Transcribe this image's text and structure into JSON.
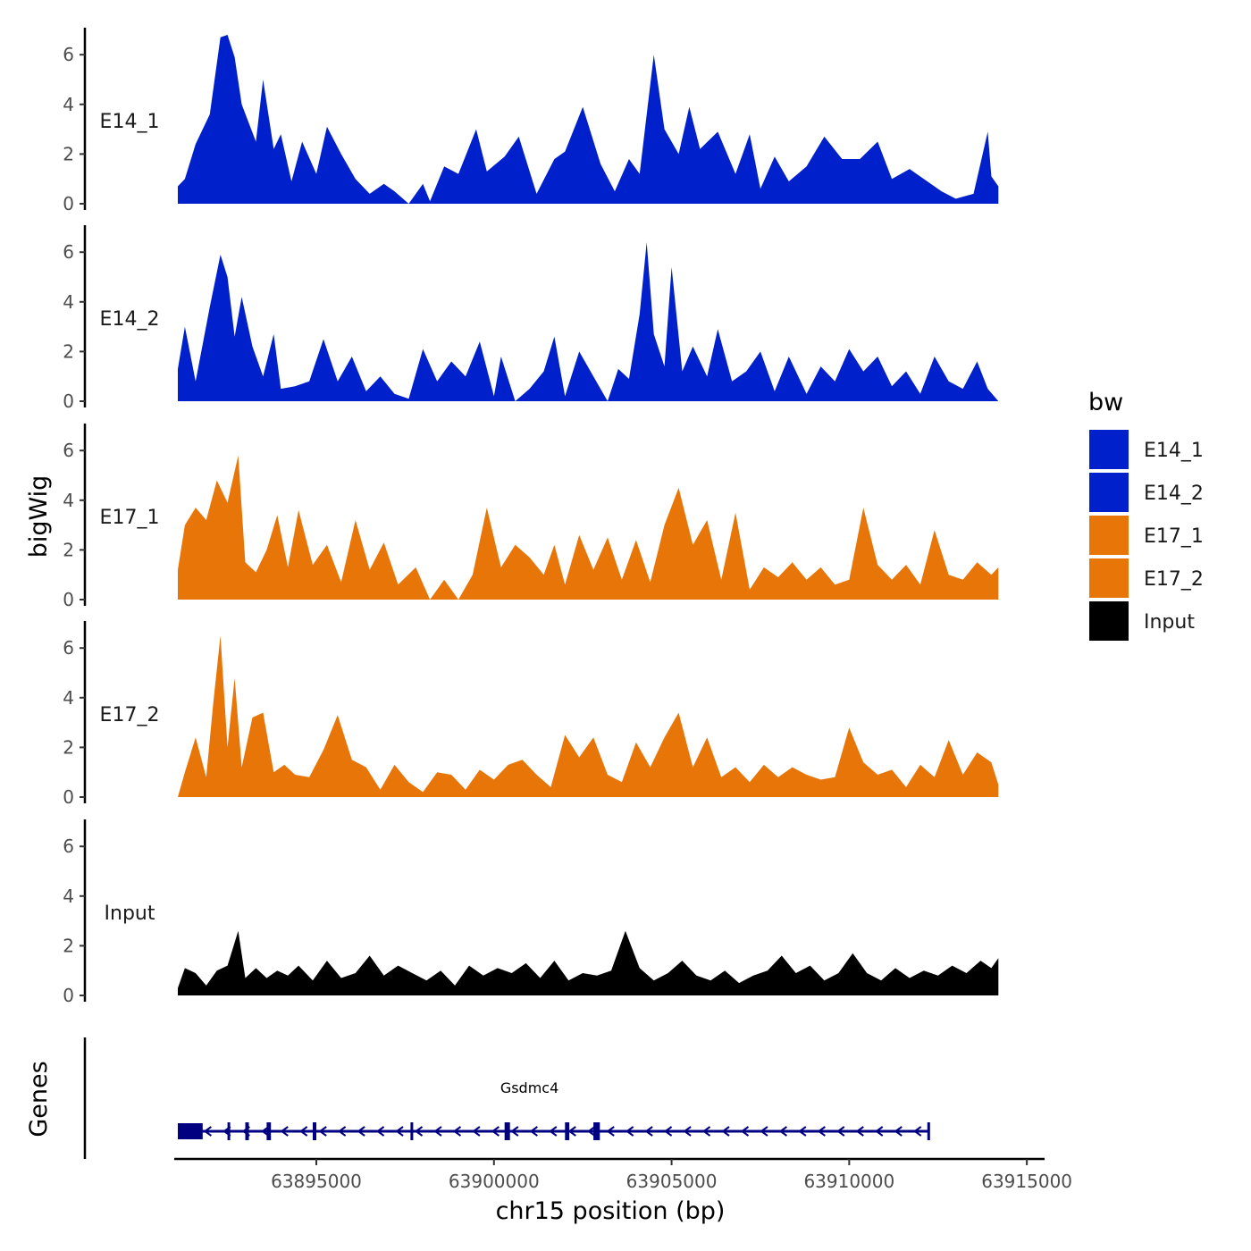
{
  "chart_data": {
    "type": "area",
    "ylabel": "bigWig",
    "xlabel": "chr15 position (bp)",
    "xlim": [
      63891000,
      63915500
    ],
    "ylim": [
      0,
      7
    ],
    "y_ticks": [
      0,
      2,
      4,
      6
    ],
    "x_ticks": [
      63895000,
      63900000,
      63905000,
      63910000,
      63915000
    ],
    "x_tick_labels": [
      "63895000",
      "63900000",
      "63905000",
      "63910000",
      "63915000"
    ],
    "legend": {
      "title": "bw",
      "position": "right",
      "entries": [
        {
          "label": "E14_1",
          "color": "#0020CC"
        },
        {
          "label": "E14_2",
          "color": "#0020CC"
        },
        {
          "label": "E17_1",
          "color": "#E87508"
        },
        {
          "label": "E17_2",
          "color": "#E87508"
        },
        {
          "label": "Input",
          "color": "#000000"
        }
      ]
    },
    "series": [
      {
        "name": "E14_1",
        "color": "#0020CC",
        "x": [
          63891100,
          63891300,
          63891600,
          63892000,
          63892300,
          63892500,
          63892700,
          63892900,
          63893300,
          63893500,
          63893800,
          63894000,
          63894300,
          63894600,
          63895000,
          63895300,
          63895700,
          63896100,
          63896500,
          63896900,
          63897200,
          63897600,
          63898000,
          63898200,
          63898600,
          63899000,
          63899500,
          63899800,
          63900300,
          63900700,
          63901200,
          63901700,
          63902000,
          63902500,
          63903000,
          63903400,
          63903800,
          63904100,
          63904500,
          63904800,
          63905200,
          63905500,
          63905800,
          63906300,
          63906800,
          63907200,
          63907500,
          63907900,
          63908300,
          63908800,
          63909300,
          63909800,
          63910300,
          63910800,
          63911200,
          63911700,
          63912100,
          63912600,
          63913000,
          63913500,
          63913900,
          63914000,
          63914200
        ],
        "y": [
          0.7,
          1.0,
          2.4,
          3.6,
          6.7,
          6.8,
          5.9,
          4.0,
          2.5,
          5.0,
          2.2,
          2.8,
          0.9,
          2.5,
          1.2,
          3.1,
          2.0,
          1.0,
          0.4,
          0.8,
          0.5,
          0,
          0.8,
          0.1,
          1.5,
          1.2,
          3.0,
          1.3,
          1.9,
          2.7,
          0.4,
          1.8,
          2.1,
          3.9,
          1.6,
          0.5,
          1.8,
          1.2,
          6.0,
          3.0,
          2.0,
          3.9,
          2.2,
          2.9,
          1.2,
          2.8,
          0.6,
          1.9,
          0.9,
          1.5,
          2.7,
          1.8,
          1.8,
          2.5,
          1.0,
          1.4,
          1.0,
          0.5,
          0.2,
          0.4,
          2.9,
          1.1,
          0.7
        ]
      },
      {
        "name": "E14_2",
        "color": "#0020CC",
        "x": [
          63891100,
          63891300,
          63891600,
          63892000,
          63892300,
          63892500,
          63892700,
          63892900,
          63893200,
          63893500,
          63893800,
          63894000,
          63894400,
          63894800,
          63895200,
          63895600,
          63896000,
          63896400,
          63896800,
          63897200,
          63897600,
          63898000,
          63898400,
          63898800,
          63899200,
          63899600,
          63900000,
          63900200,
          63900600,
          63901000,
          63901400,
          63901700,
          63902000,
          63902400,
          63902800,
          63903200,
          63903500,
          63903800,
          63904100,
          63904300,
          63904500,
          63904800,
          63905000,
          63905300,
          63905600,
          63906000,
          63906300,
          63906700,
          63907100,
          63907500,
          63907900,
          63908300,
          63908800,
          63909200,
          63909600,
          63910000,
          63910400,
          63910800,
          63911200,
          63911600,
          63912000,
          63912400,
          63912800,
          63913200,
          63913600,
          63913900,
          63914200
        ],
        "y": [
          1.3,
          3.0,
          0.8,
          3.8,
          5.9,
          5.0,
          2.6,
          4.2,
          2.2,
          1.0,
          2.7,
          0.5,
          0.6,
          0.8,
          2.5,
          0.8,
          1.8,
          0.4,
          1.0,
          0.3,
          0.1,
          2.1,
          0.8,
          1.6,
          1.0,
          2.4,
          0.2,
          1.8,
          0,
          0.5,
          1.2,
          2.6,
          0.2,
          2.0,
          1.0,
          0,
          1.3,
          0.9,
          3.5,
          6.4,
          2.7,
          1.4,
          5.4,
          1.2,
          2.2,
          1.0,
          2.9,
          0.8,
          1.2,
          2.0,
          0.4,
          1.8,
          0.3,
          1.4,
          0.8,
          2.1,
          1.2,
          1.8,
          0.6,
          1.2,
          0.3,
          1.8,
          0.8,
          0.5,
          1.6,
          0.5,
          0
        ]
      },
      {
        "name": "E17_1",
        "color": "#E87508",
        "x": [
          63891100,
          63891300,
          63891600,
          63891900,
          63892200,
          63892500,
          63892800,
          63893000,
          63893300,
          63893600,
          63893900,
          63894200,
          63894500,
          63894900,
          63895300,
          63895700,
          63896100,
          63896500,
          63896900,
          63897300,
          63897800,
          63898200,
          63898600,
          63899000,
          63899400,
          63899800,
          63900200,
          63900600,
          63901000,
          63901400,
          63901700,
          63902000,
          63902400,
          63902800,
          63903200,
          63903600,
          63904000,
          63904400,
          63904800,
          63905200,
          63905600,
          63906000,
          63906400,
          63906800,
          63907200,
          63907600,
          63908000,
          63908400,
          63908800,
          63909200,
          63909600,
          63910000,
          63910400,
          63910800,
          63911200,
          63911600,
          63912000,
          63912400,
          63912800,
          63913200,
          63913600,
          63914000,
          63914200
        ],
        "y": [
          1.2,
          3.0,
          3.7,
          3.2,
          4.8,
          3.9,
          5.8,
          1.5,
          1.1,
          2.0,
          3.4,
          1.3,
          3.6,
          1.4,
          2.2,
          0.7,
          3.2,
          1.2,
          2.3,
          0.6,
          1.3,
          0,
          0.8,
          0,
          1.0,
          3.7,
          1.3,
          2.2,
          1.7,
          1.0,
          2.2,
          0.6,
          2.6,
          1.2,
          2.5,
          0.8,
          2.4,
          0.7,
          3.0,
          4.5,
          2.2,
          3.2,
          0.8,
          3.5,
          0.4,
          1.3,
          0.9,
          1.5,
          0.8,
          1.3,
          0.6,
          0.8,
          3.7,
          1.4,
          0.8,
          1.4,
          0.6,
          2.8,
          1.0,
          0.8,
          1.5,
          1.0,
          1.3
        ]
      },
      {
        "name": "E17_2",
        "color": "#E87508",
        "x": [
          63891100,
          63891300,
          63891600,
          63891900,
          63892100,
          63892300,
          63892500,
          63892700,
          63892900,
          63893200,
          63893500,
          63893800,
          63894100,
          63894400,
          63894800,
          63895200,
          63895600,
          63896000,
          63896400,
          63896800,
          63897200,
          63897600,
          63898000,
          63898400,
          63898800,
          63899200,
          63899600,
          63900000,
          63900400,
          63900800,
          63901200,
          63901600,
          63902000,
          63902400,
          63902800,
          63903200,
          63903600,
          63904000,
          63904400,
          63904800,
          63905200,
          63905600,
          63906000,
          63906400,
          63906800,
          63907200,
          63907600,
          63908000,
          63908400,
          63908800,
          63909200,
          63909600,
          63910000,
          63910400,
          63910800,
          63911200,
          63911600,
          63912000,
          63912400,
          63912800,
          63913200,
          63913600,
          63914000,
          63914200
        ],
        "y": [
          0,
          1.0,
          2.4,
          0.8,
          3.8,
          6.5,
          2.0,
          4.8,
          1.2,
          3.2,
          3.4,
          1.0,
          1.3,
          0.9,
          0.8,
          1.9,
          3.3,
          1.5,
          1.2,
          0.3,
          1.3,
          0.6,
          0.2,
          1.0,
          0.9,
          0.3,
          1.1,
          0.7,
          1.3,
          1.5,
          0.9,
          0.4,
          2.5,
          1.6,
          2.4,
          0.9,
          0.6,
          2.2,
          1.2,
          2.4,
          3.4,
          1.2,
          2.4,
          0.8,
          1.2,
          0.6,
          1.3,
          0.8,
          1.2,
          0.9,
          0.7,
          0.8,
          2.8,
          1.4,
          0.9,
          1.1,
          0.4,
          1.3,
          0.8,
          2.3,
          0.9,
          1.8,
          1.4,
          0.5
        ]
      },
      {
        "name": "Input",
        "color": "#000000",
        "x": [
          63891100,
          63891300,
          63891600,
          63891900,
          63892200,
          63892500,
          63892800,
          63893000,
          63893300,
          63893600,
          63893900,
          63894200,
          63894500,
          63894900,
          63895300,
          63895700,
          63896100,
          63896500,
          63896900,
          63897300,
          63897700,
          63898100,
          63898500,
          63898900,
          63899300,
          63899700,
          63900100,
          63900500,
          63900900,
          63901300,
          63901700,
          63902100,
          63902500,
          63902900,
          63903300,
          63903700,
          63904100,
          63904500,
          63904900,
          63905300,
          63905700,
          63906100,
          63906500,
          63906900,
          63907300,
          63907700,
          63908100,
          63908500,
          63908900,
          63909300,
          63909700,
          63910100,
          63910500,
          63910900,
          63911300,
          63911700,
          63912100,
          63912500,
          63912900,
          63913300,
          63913700,
          63914000,
          63914200
        ],
        "y": [
          0.3,
          1.1,
          0.9,
          0.4,
          1.0,
          1.2,
          2.6,
          0.7,
          1.1,
          0.7,
          1.0,
          0.8,
          1.2,
          0.6,
          1.4,
          0.7,
          0.9,
          1.6,
          0.8,
          1.2,
          0.9,
          0.6,
          1.0,
          0.4,
          1.2,
          0.8,
          1.1,
          0.9,
          1.3,
          0.7,
          1.4,
          0.6,
          0.9,
          0.8,
          1.0,
          2.6,
          1.1,
          0.6,
          0.9,
          1.4,
          0.8,
          0.6,
          1.0,
          0.5,
          0.8,
          1.0,
          1.6,
          0.9,
          1.2,
          0.6,
          0.9,
          1.7,
          0.9,
          0.6,
          1.1,
          0.7,
          1.0,
          0.8,
          1.2,
          0.9,
          1.4,
          1.1,
          1.5
        ]
      }
    ]
  },
  "genes_panel": {
    "label": "Genes",
    "gene_name": "Gsdmc4",
    "gene_color": "#000080",
    "strand": "-",
    "start": 63891100,
    "end": 63912250,
    "exons": [
      [
        63891100,
        63891800
      ],
      [
        63892500,
        63892560
      ],
      [
        63893000,
        63893100
      ],
      [
        63893600,
        63893720
      ],
      [
        63894900,
        63895000
      ],
      [
        63897650,
        63897720
      ],
      [
        63900300,
        63900450
      ],
      [
        63902000,
        63902120
      ],
      [
        63902800,
        63902980
      ],
      [
        63912200,
        63912250
      ]
    ]
  }
}
